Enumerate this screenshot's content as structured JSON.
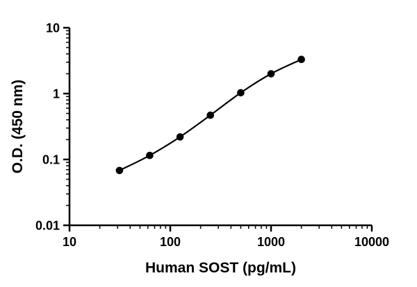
{
  "chart_data": {
    "type": "line",
    "title": "",
    "xlabel": "Human SOST (pg/mL)",
    "ylabel": "O.D. (450 nm)",
    "xscale": "log",
    "yscale": "log",
    "xlim": [
      10,
      10000
    ],
    "ylim": [
      0.01,
      10
    ],
    "grid": false,
    "legend": false,
    "x_tick_values": [
      10,
      100,
      1000,
      10000
    ],
    "x_tick_labels": [
      "10",
      "100",
      "1000",
      "10000"
    ],
    "y_tick_values": [
      10,
      1,
      0.1,
      0.01
    ],
    "y_tick_labels": [
      "10",
      "1",
      "0.1",
      "0.01"
    ],
    "series": [
      {
        "marker": "filled-circle",
        "color": "#000000",
        "x": [
          31.3,
          62.5,
          125,
          250,
          500,
          1000,
          2000
        ],
        "y": [
          0.068,
          0.115,
          0.22,
          0.47,
          1.03,
          2.0,
          3.3
        ]
      }
    ]
  },
  "colors": {
    "axis": "#000000",
    "marker": "#000000",
    "background": "#ffffff"
  }
}
